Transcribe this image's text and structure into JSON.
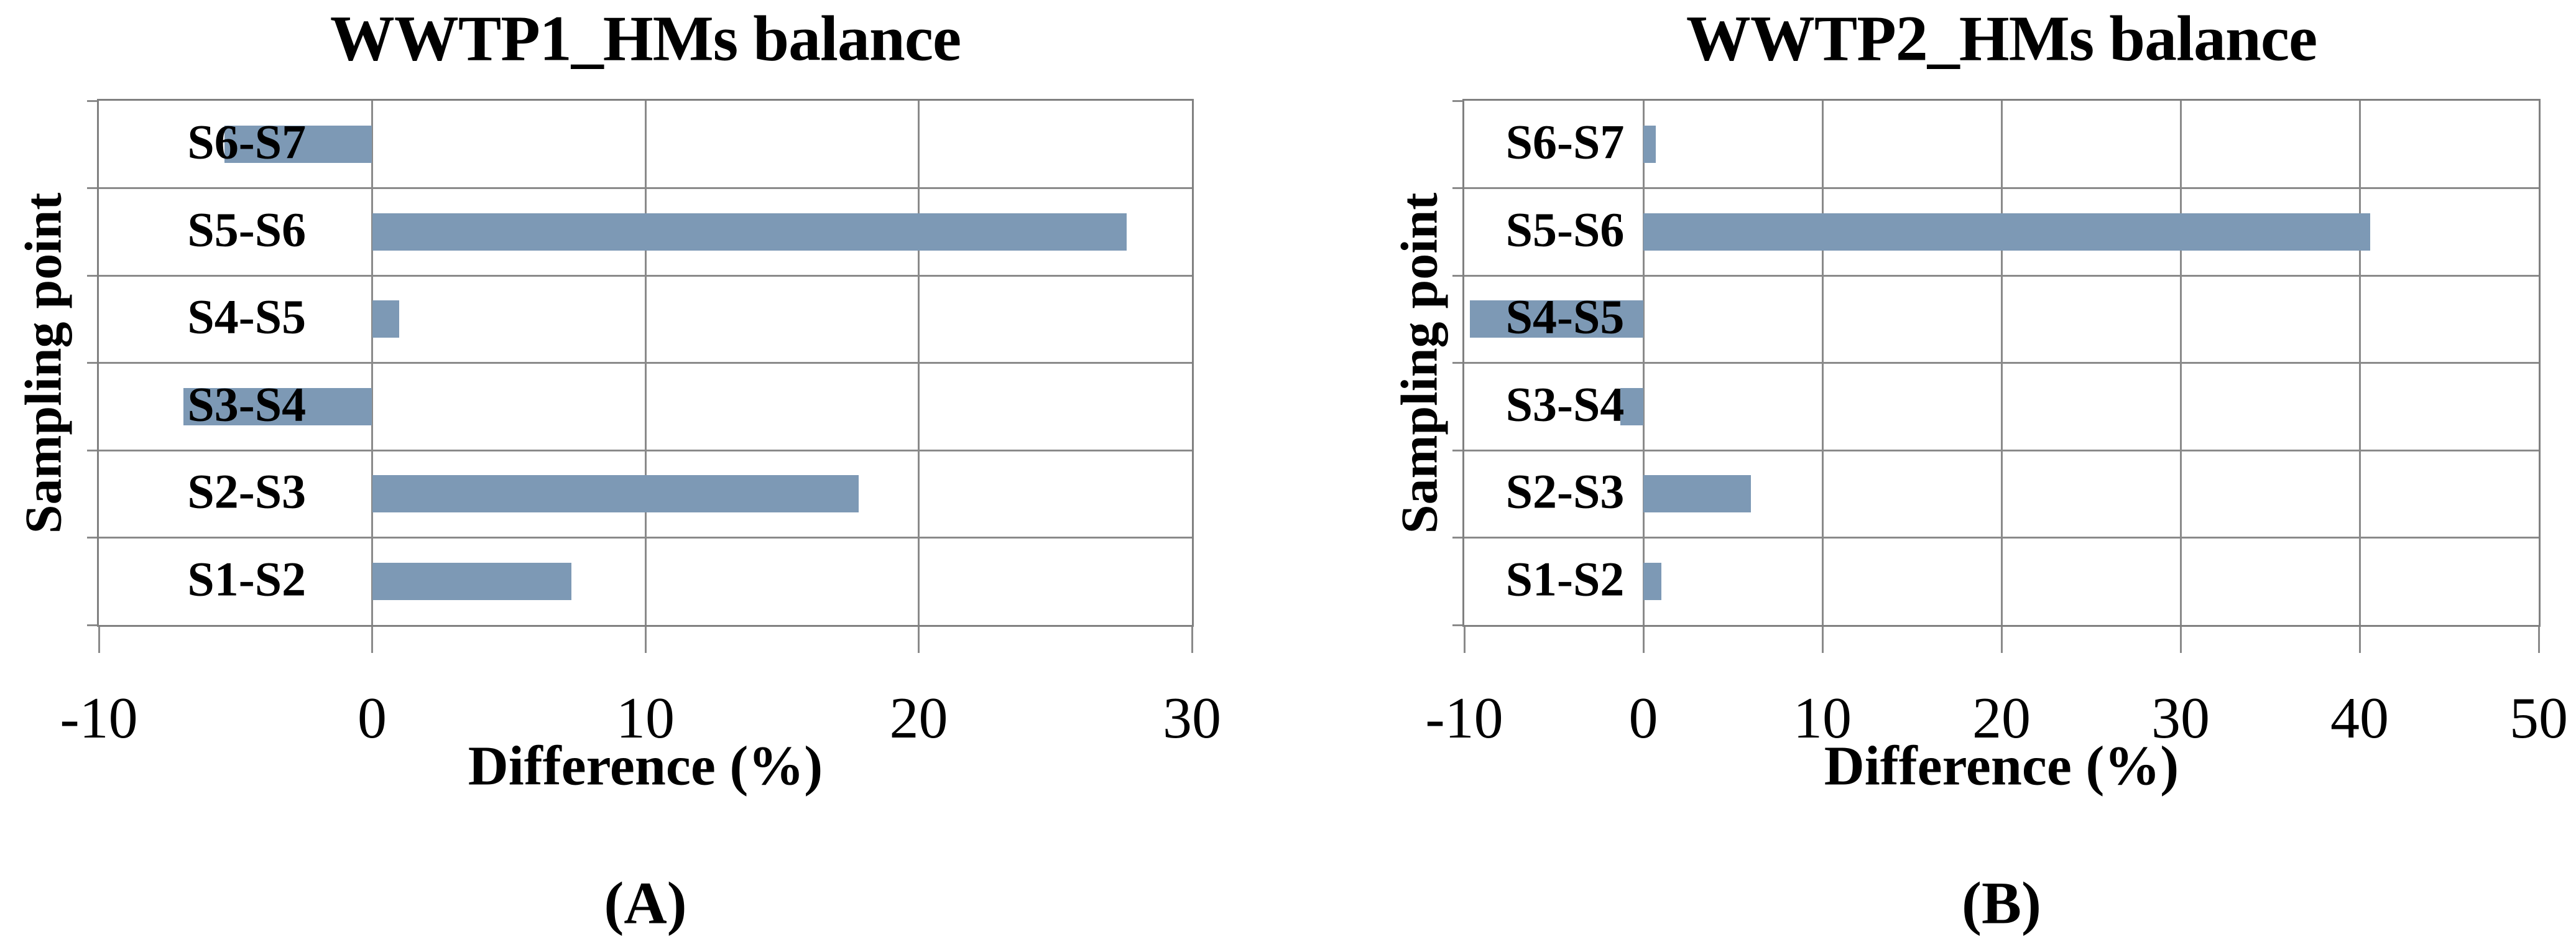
{
  "style": {
    "bar_color": "#7D99B5",
    "grid_color": "#8a8a8a",
    "border_color": "#808080",
    "text_color": "#000000",
    "background": "#ffffff"
  },
  "chart_data": [
    {
      "type": "bar",
      "orientation": "horizontal",
      "title": "WWTP1_HMs balance",
      "xlabel": "Difference (%)",
      "ylabel": "Sampling point",
      "caption": "(A)",
      "categories": [
        "S6-S7",
        "S5-S6",
        "S4-S5",
        "S3-S4",
        "S2-S3",
        "S1-S2"
      ],
      "values": [
        -5.4,
        27.6,
        1.0,
        -6.9,
        17.8,
        7.3
      ],
      "xlim": [
        -10,
        30
      ],
      "xticks": [
        -10,
        0,
        10,
        20,
        30
      ],
      "grid": true,
      "legend": false
    },
    {
      "type": "bar",
      "orientation": "horizontal",
      "title": "WWTP2_HMs balance",
      "xlabel": "Difference (%)",
      "ylabel": "Sampling point",
      "caption": "(B)",
      "categories": [
        "S6-S7",
        "S5-S6",
        "S4-S5",
        "S3-S4",
        "S2-S3",
        "S1-S2"
      ],
      "values": [
        0.7,
        40.6,
        -9.7,
        -1.3,
        6.0,
        1.0
      ],
      "xlim": [
        -10,
        50
      ],
      "xticks": [
        -10,
        0,
        10,
        20,
        30,
        40,
        50
      ],
      "grid": true,
      "legend": false
    }
  ]
}
